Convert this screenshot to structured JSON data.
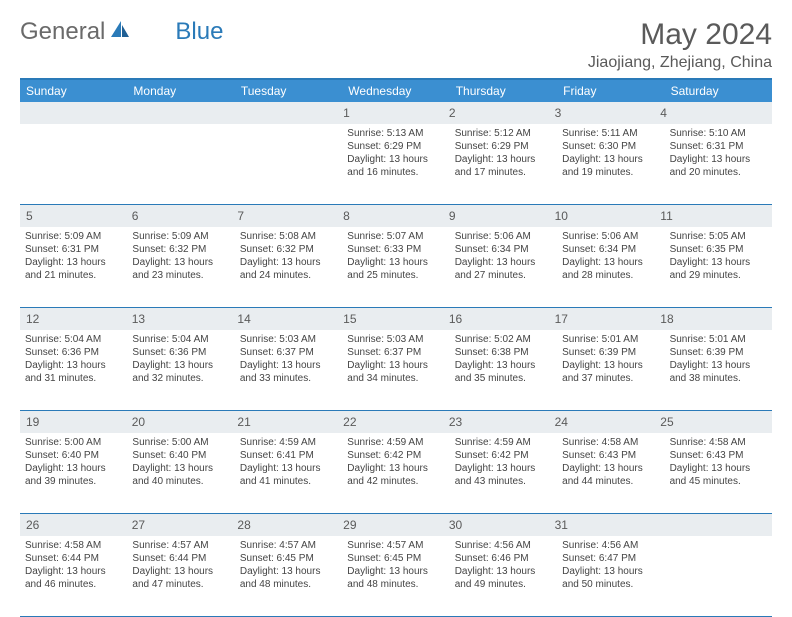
{
  "logo": {
    "part1": "General",
    "part2": "Blue"
  },
  "title": "May 2024",
  "subtitle": "Jiaojiang, Zhejiang, China",
  "colors": {
    "header_bg": "#3b8fd1",
    "border": "#2a7ab8",
    "daynum_bg": "#e9edf0",
    "text_gray": "#5a5a5a",
    "body_text": "#444444",
    "white": "#ffffff"
  },
  "weekdays": [
    "Sunday",
    "Monday",
    "Tuesday",
    "Wednesday",
    "Thursday",
    "Friday",
    "Saturday"
  ],
  "weeks": [
    {
      "nums": [
        "",
        "",
        "",
        "1",
        "2",
        "3",
        "4"
      ],
      "cells": [
        null,
        null,
        null,
        {
          "sunrise": "5:13 AM",
          "sunset": "6:29 PM",
          "daylight": "13 hours and 16 minutes."
        },
        {
          "sunrise": "5:12 AM",
          "sunset": "6:29 PM",
          "daylight": "13 hours and 17 minutes."
        },
        {
          "sunrise": "5:11 AM",
          "sunset": "6:30 PM",
          "daylight": "13 hours and 19 minutes."
        },
        {
          "sunrise": "5:10 AM",
          "sunset": "6:31 PM",
          "daylight": "13 hours and 20 minutes."
        }
      ]
    },
    {
      "nums": [
        "5",
        "6",
        "7",
        "8",
        "9",
        "10",
        "11"
      ],
      "cells": [
        {
          "sunrise": "5:09 AM",
          "sunset": "6:31 PM",
          "daylight": "13 hours and 21 minutes."
        },
        {
          "sunrise": "5:09 AM",
          "sunset": "6:32 PM",
          "daylight": "13 hours and 23 minutes."
        },
        {
          "sunrise": "5:08 AM",
          "sunset": "6:32 PM",
          "daylight": "13 hours and 24 minutes."
        },
        {
          "sunrise": "5:07 AM",
          "sunset": "6:33 PM",
          "daylight": "13 hours and 25 minutes."
        },
        {
          "sunrise": "5:06 AM",
          "sunset": "6:34 PM",
          "daylight": "13 hours and 27 minutes."
        },
        {
          "sunrise": "5:06 AM",
          "sunset": "6:34 PM",
          "daylight": "13 hours and 28 minutes."
        },
        {
          "sunrise": "5:05 AM",
          "sunset": "6:35 PM",
          "daylight": "13 hours and 29 minutes."
        }
      ]
    },
    {
      "nums": [
        "12",
        "13",
        "14",
        "15",
        "16",
        "17",
        "18"
      ],
      "cells": [
        {
          "sunrise": "5:04 AM",
          "sunset": "6:36 PM",
          "daylight": "13 hours and 31 minutes."
        },
        {
          "sunrise": "5:04 AM",
          "sunset": "6:36 PM",
          "daylight": "13 hours and 32 minutes."
        },
        {
          "sunrise": "5:03 AM",
          "sunset": "6:37 PM",
          "daylight": "13 hours and 33 minutes."
        },
        {
          "sunrise": "5:03 AM",
          "sunset": "6:37 PM",
          "daylight": "13 hours and 34 minutes."
        },
        {
          "sunrise": "5:02 AM",
          "sunset": "6:38 PM",
          "daylight": "13 hours and 35 minutes."
        },
        {
          "sunrise": "5:01 AM",
          "sunset": "6:39 PM",
          "daylight": "13 hours and 37 minutes."
        },
        {
          "sunrise": "5:01 AM",
          "sunset": "6:39 PM",
          "daylight": "13 hours and 38 minutes."
        }
      ]
    },
    {
      "nums": [
        "19",
        "20",
        "21",
        "22",
        "23",
        "24",
        "25"
      ],
      "cells": [
        {
          "sunrise": "5:00 AM",
          "sunset": "6:40 PM",
          "daylight": "13 hours and 39 minutes."
        },
        {
          "sunrise": "5:00 AM",
          "sunset": "6:40 PM",
          "daylight": "13 hours and 40 minutes."
        },
        {
          "sunrise": "4:59 AM",
          "sunset": "6:41 PM",
          "daylight": "13 hours and 41 minutes."
        },
        {
          "sunrise": "4:59 AM",
          "sunset": "6:42 PM",
          "daylight": "13 hours and 42 minutes."
        },
        {
          "sunrise": "4:59 AM",
          "sunset": "6:42 PM",
          "daylight": "13 hours and 43 minutes."
        },
        {
          "sunrise": "4:58 AM",
          "sunset": "6:43 PM",
          "daylight": "13 hours and 44 minutes."
        },
        {
          "sunrise": "4:58 AM",
          "sunset": "6:43 PM",
          "daylight": "13 hours and 45 minutes."
        }
      ]
    },
    {
      "nums": [
        "26",
        "27",
        "28",
        "29",
        "30",
        "31",
        ""
      ],
      "cells": [
        {
          "sunrise": "4:58 AM",
          "sunset": "6:44 PM",
          "daylight": "13 hours and 46 minutes."
        },
        {
          "sunrise": "4:57 AM",
          "sunset": "6:44 PM",
          "daylight": "13 hours and 47 minutes."
        },
        {
          "sunrise": "4:57 AM",
          "sunset": "6:45 PM",
          "daylight": "13 hours and 48 minutes."
        },
        {
          "sunrise": "4:57 AM",
          "sunset": "6:45 PM",
          "daylight": "13 hours and 48 minutes."
        },
        {
          "sunrise": "4:56 AM",
          "sunset": "6:46 PM",
          "daylight": "13 hours and 49 minutes."
        },
        {
          "sunrise": "4:56 AM",
          "sunset": "6:47 PM",
          "daylight": "13 hours and 50 minutes."
        },
        null
      ]
    }
  ],
  "labels": {
    "sunrise": "Sunrise:",
    "sunset": "Sunset:",
    "daylight": "Daylight:"
  }
}
